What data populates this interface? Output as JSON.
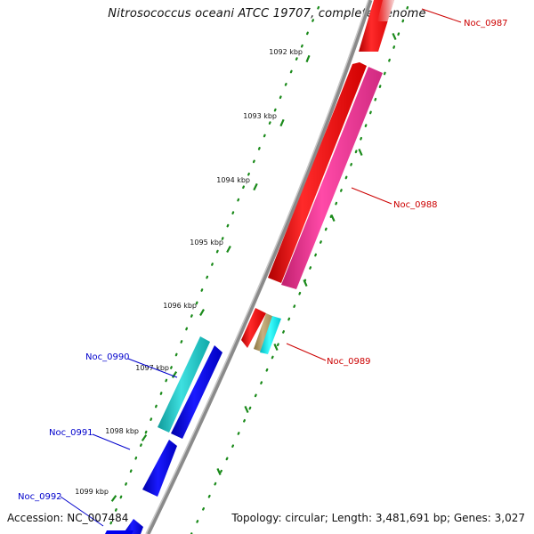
{
  "title": "Nitrosococcus oceani ATCC 19707, complete genome",
  "accession": "Accession: NC_007484",
  "summary": "Topology: circular; Length: 3,481,691 bp; Genes: 3,027",
  "ticks": [
    "1092 kbp",
    "1093 kbp",
    "1094 kbp",
    "1095 kbp",
    "1096 kbp",
    "1097 kbp",
    "1098 kbp",
    "1099 kbp"
  ],
  "genes": [
    {
      "name": "Noc_0987",
      "strand": "+",
      "color": "#ff0000",
      "label_color": "#cc0000"
    },
    {
      "name": "Noc_0988",
      "strand": "+",
      "color": "#ff0000",
      "label_color": "#cc0000"
    },
    {
      "name": "Noc_0988",
      "strand": "+",
      "color": "#ff3399",
      "label_color": "#cc0000"
    },
    {
      "name": "Noc_0989",
      "strand": "+",
      "color": "#ff0000",
      "label_color": "#cc0000"
    },
    {
      "name": "Noc_0989",
      "strand": "+",
      "color": "#b8a070",
      "label_color": "#cc0000"
    },
    {
      "name": "Noc_0989",
      "strand": "+",
      "color": "#00e5ee",
      "label_color": "#cc0000"
    },
    {
      "name": "Noc_0990",
      "strand": "-",
      "color": "#20c8c8",
      "label_color": "#0000cc"
    },
    {
      "name": "Noc_0990",
      "strand": "-",
      "color": "#0000ee",
      "label_color": "#0000cc"
    },
    {
      "name": "Noc_0991",
      "strand": "-",
      "color": "#0000ee",
      "label_color": "#0000cc"
    },
    {
      "name": "Noc_0992",
      "strand": "-",
      "color": "#0000ee",
      "label_color": "#0000cc"
    }
  ],
  "colors": {
    "backbone": "#8a8a8a",
    "tick": "#1a8a1a",
    "dots": "#1a8a1a"
  }
}
